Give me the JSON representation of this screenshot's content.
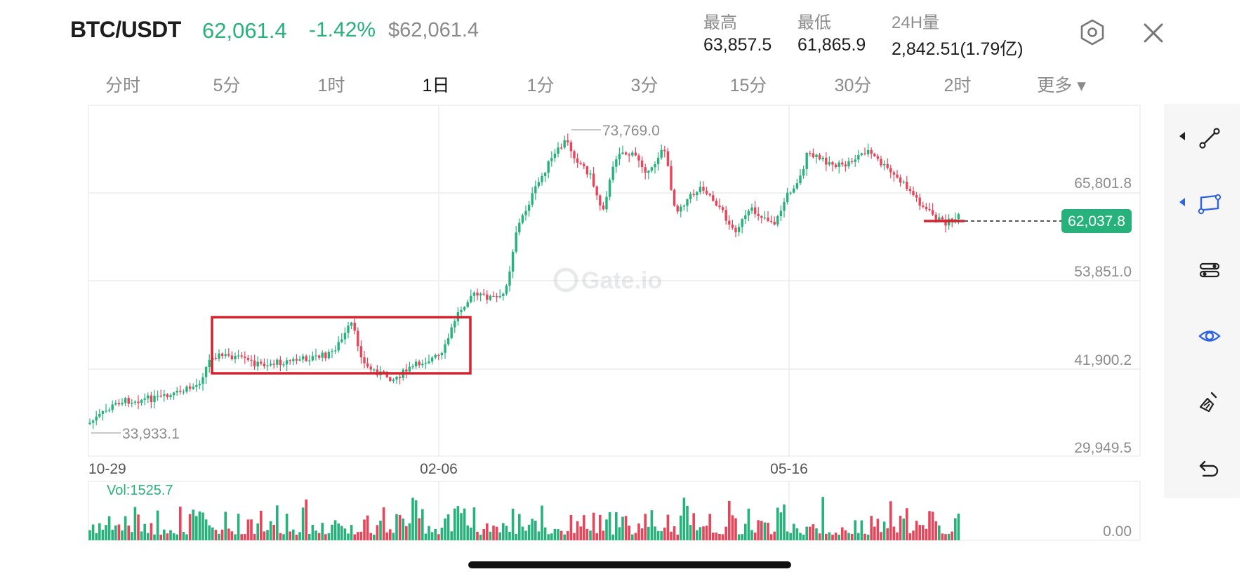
{
  "header": {
    "pair": "BTC/USDT",
    "price": "62,061.4",
    "change": "-1.42%",
    "price_usd": "$62,061.4",
    "stats": [
      {
        "label": "最高",
        "value": "63,857.5"
      },
      {
        "label": "最低",
        "value": "61,865.9"
      },
      {
        "label": "24H量",
        "value": "2,842.51(1.79亿)"
      }
    ],
    "icons": {
      "settings": "hexagon-settings-icon",
      "close": "close-icon"
    }
  },
  "tabs": [
    {
      "label": "分时",
      "active": false
    },
    {
      "label": "5分",
      "active": false
    },
    {
      "label": "1时",
      "active": false
    },
    {
      "label": "1日",
      "active": true
    },
    {
      "label": "1分",
      "active": false
    },
    {
      "label": "3分",
      "active": false
    },
    {
      "label": "15分",
      "active": false
    },
    {
      "label": "30分",
      "active": false
    },
    {
      "label": "2时",
      "active": false
    },
    {
      "label": "更多 ▾",
      "active": false
    }
  ],
  "chart": {
    "price_axis": [
      "65,801.8",
      "53,851.0",
      "41,900.2",
      "29,949.5"
    ],
    "price_axis_values": [
      65801.8,
      53851.0,
      41900.2,
      29949.5
    ],
    "date_labels": [
      "10-29",
      "02-06",
      "05-16"
    ],
    "high_marker": "73,769.0",
    "low_marker": "33,933.1",
    "current_price_tag": "62,037.8",
    "watermark": "Gate.io",
    "volume_label": "Vol:1525.7",
    "volume_axis": "0.00",
    "colors": {
      "up": "#27b27c",
      "down": "#e8445a",
      "highlight_box": "#d3232e",
      "price_tag": "#27b27c"
    }
  },
  "toolbar": {
    "tools": [
      {
        "icon": "trendline-icon",
        "active": false
      },
      {
        "icon": "rectangle-draw-icon",
        "active": true
      },
      {
        "icon": "indicator-settings-icon",
        "active": false
      },
      {
        "icon": "eye-visibility-icon",
        "active": true
      },
      {
        "icon": "eraser-brush-icon",
        "active": false
      },
      {
        "icon": "undo-icon",
        "active": false
      }
    ]
  }
}
